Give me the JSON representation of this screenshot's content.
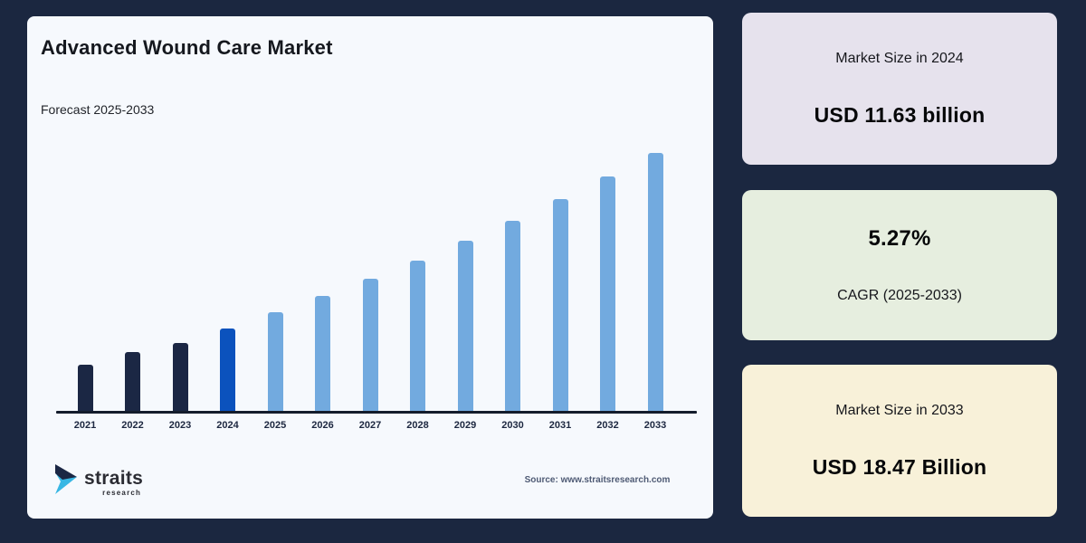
{
  "page": {
    "background": "#1b2740",
    "panel_background": "#f6f9fd"
  },
  "panel": {
    "title": "Advanced Wound Care Market",
    "subtitle": "Forecast 2025-2033"
  },
  "chart_data": {
    "type": "bar",
    "title": "Advanced Wound Care Market",
    "subtitle": "Forecast 2025-2033",
    "unit": "USD billion",
    "categories": [
      "2021",
      "2022",
      "2023",
      "2024",
      "2025",
      "2026",
      "2027",
      "2028",
      "2029",
      "2030",
      "2031",
      "2032",
      "2033"
    ],
    "values": [
      10.2,
      10.7,
      11.05,
      11.63,
      12.24,
      12.89,
      13.57,
      14.28,
      15.04,
      15.83,
      16.66,
      17.54,
      18.47
    ],
    "ylim": [
      8.4,
      19.0
    ],
    "grid": false,
    "legend": false,
    "base_year": "2024",
    "forecast_start": "2025",
    "colors": {
      "historical": "#1b2744",
      "base_year": "#0b52bd",
      "forecast": "#72aadf",
      "axis": "#141c2c",
      "tick_labels": "#1c2740"
    }
  },
  "stats": [
    {
      "label": "Market Size in 2024",
      "value": "USD 11.63 billion",
      "bg": "#e6e2ed",
      "value_first": false
    },
    {
      "label": "CAGR (2025-2033)",
      "value": "5.27%",
      "bg": "#e6eedf",
      "value_first": true
    },
    {
      "label": "Market Size in 2033",
      "value": "USD 18.47 Billion",
      "bg": "#f8f1d9",
      "value_first": false
    }
  ],
  "footer": {
    "source": "Source: www.straitsresearch.com",
    "logo_primary": "straits",
    "logo_secondary": "research",
    "logo_colors": {
      "dark": "#1b2744",
      "cyan": "#38b7e4"
    }
  }
}
